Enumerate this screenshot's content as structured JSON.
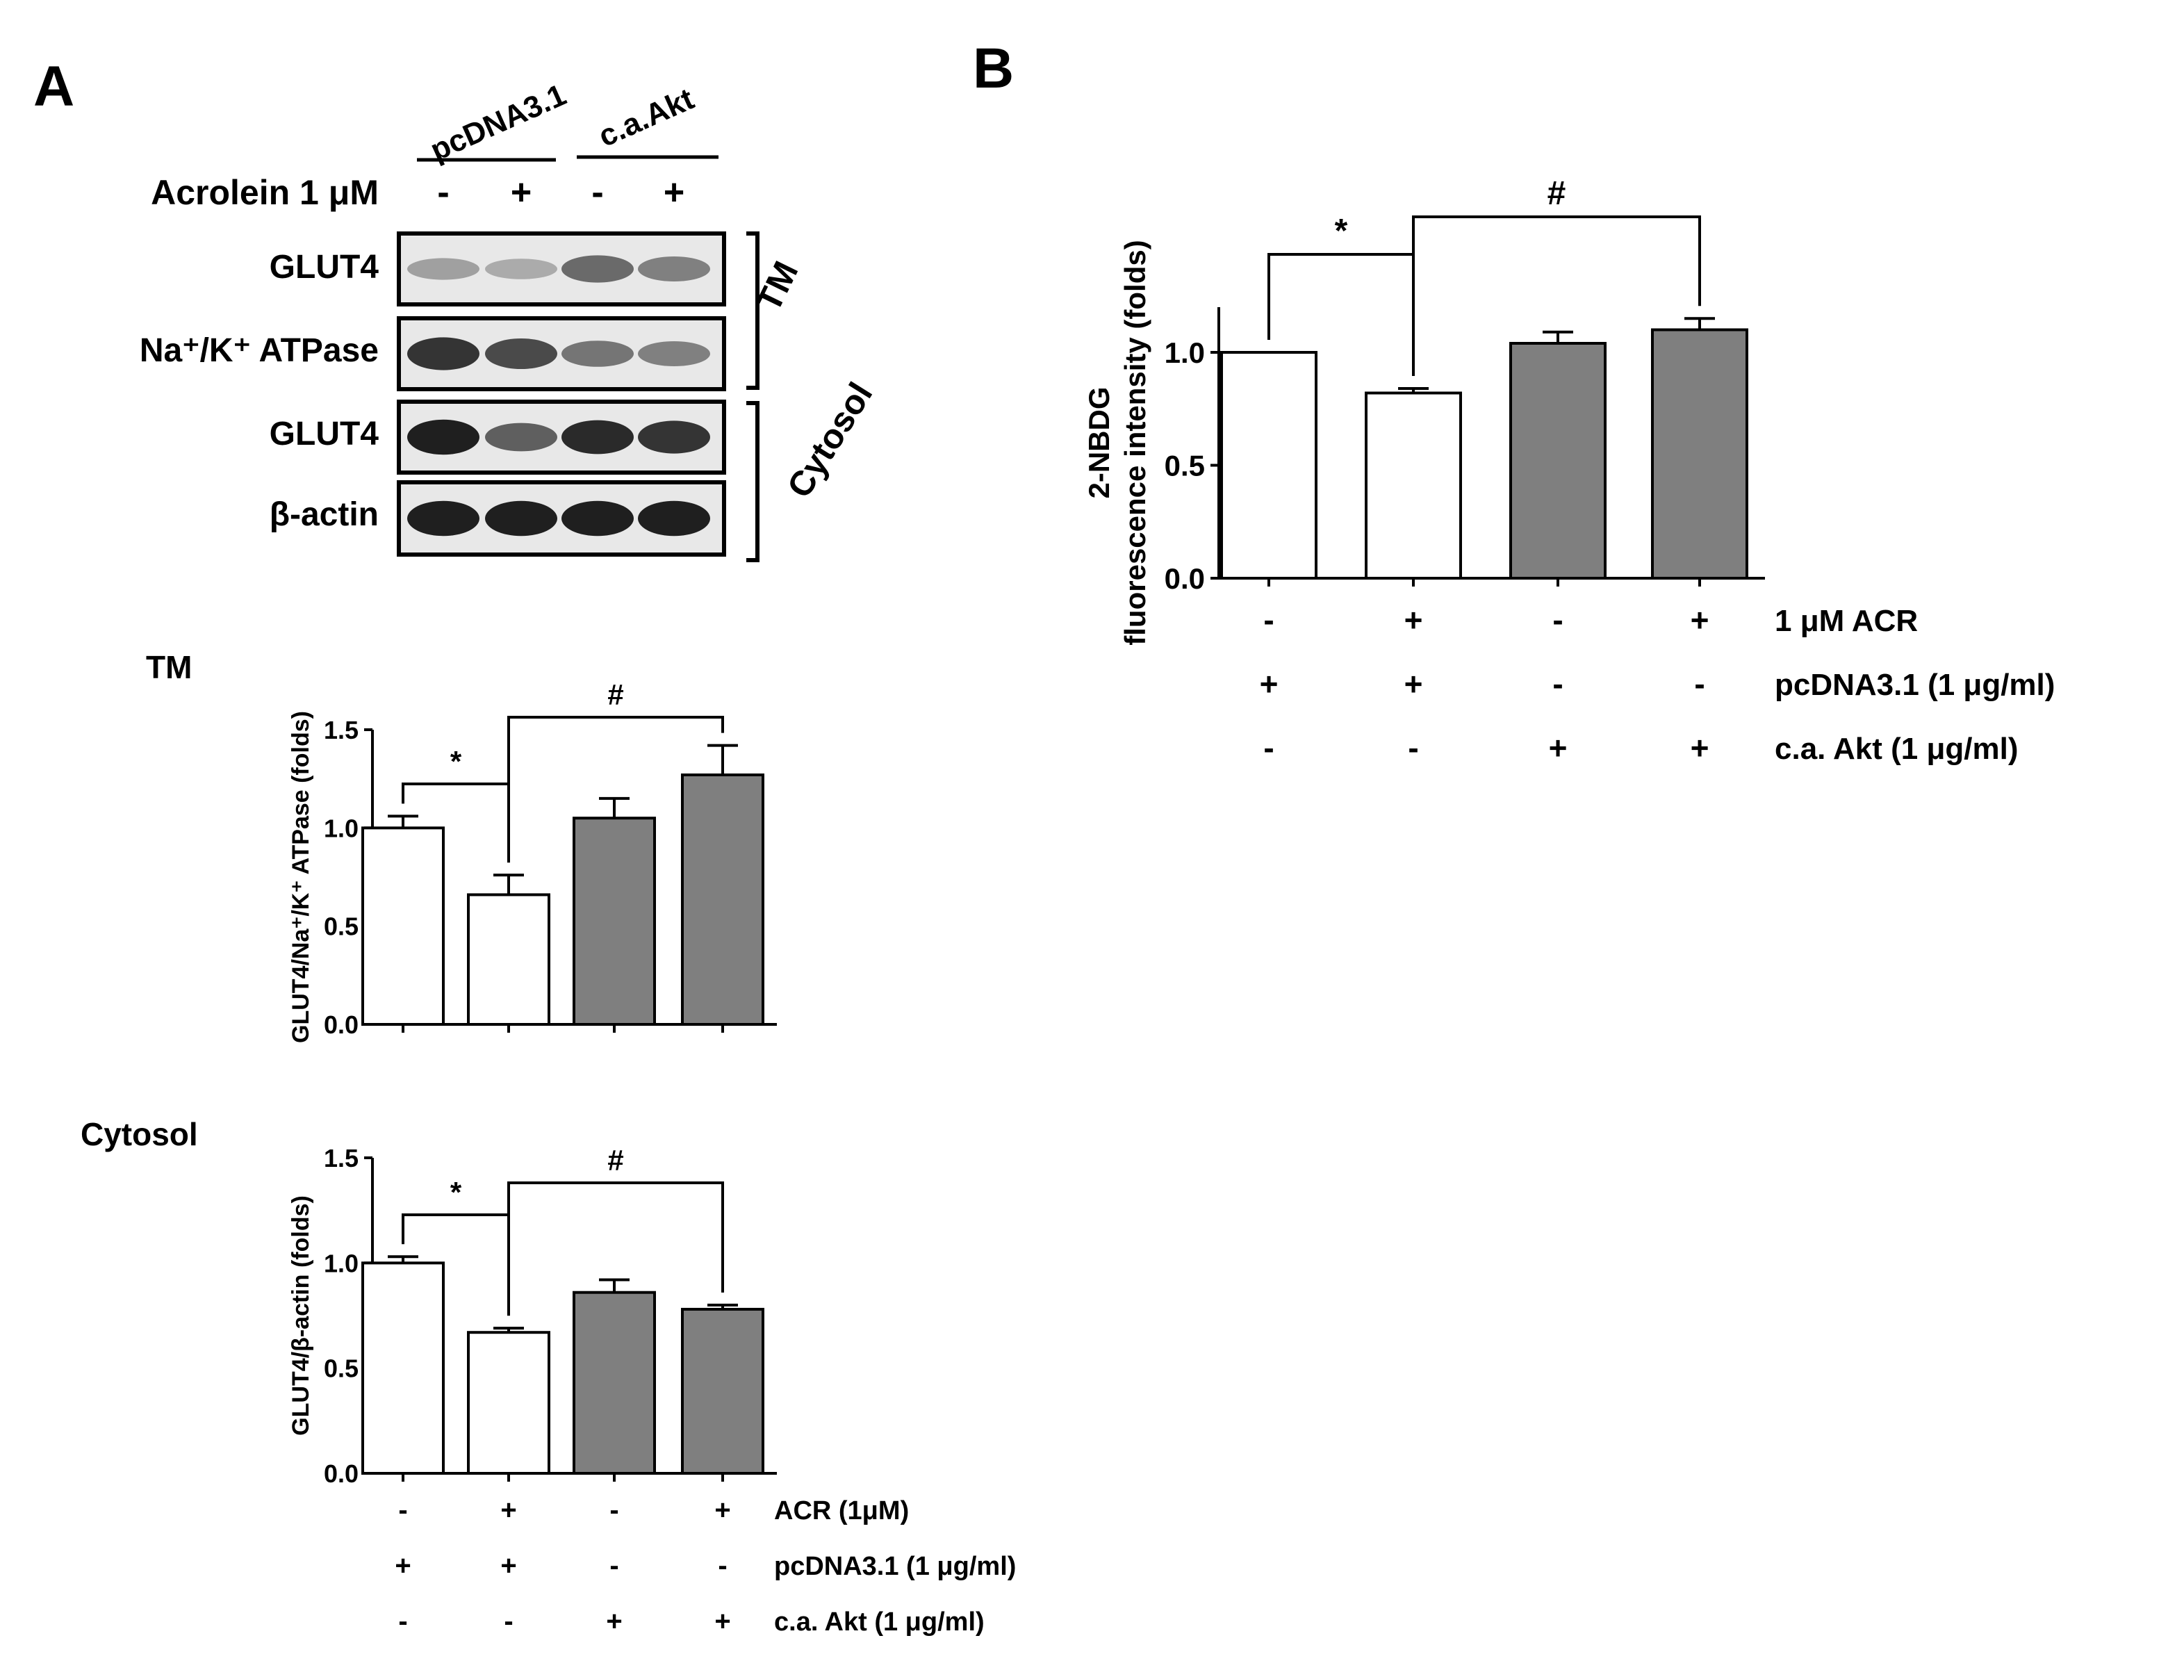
{
  "panel_a_label": "A",
  "panel_b_label": "B",
  "blot": {
    "group_labels": [
      "pcDNA3.1",
      "c.a.Akt"
    ],
    "treatment_label": "Acrolein 1 μM",
    "treatment_signs": [
      "-",
      "+",
      "-",
      "+"
    ],
    "rows": [
      {
        "label_main": "GLUT4",
        "label_sup": ""
      },
      {
        "label_main": "Na⁺/K⁺ ATPase",
        "label_sup": ""
      },
      {
        "label_main": "GLUT4",
        "label_sup": ""
      },
      {
        "label_main": "β-actin",
        "label_sup": ""
      }
    ],
    "fraction_labels": [
      "TM",
      "Cytosol"
    ],
    "band_intensity": {
      "tm_glut4": [
        0.35,
        0.3,
        0.6,
        0.5
      ],
      "tm_atpase": [
        0.85,
        0.75,
        0.55,
        0.5
      ],
      "cyto_glut4": [
        0.95,
        0.65,
        0.9,
        0.85
      ],
      "cyto_actin": [
        0.95,
        0.95,
        0.95,
        0.95
      ]
    }
  },
  "chart_data": [
    {
      "id": "A-TM",
      "type": "bar",
      "section_label": "TM",
      "ylabel": "GLUT4/Na⁺/K⁺ ATPase (folds)",
      "ylim": [
        0,
        1.5
      ],
      "yticks": [
        "0.0",
        "0.5",
        "1.0",
        "1.5"
      ],
      "values": [
        1.0,
        0.66,
        1.05,
        1.27
      ],
      "errors": [
        0.06,
        0.1,
        0.1,
        0.15
      ],
      "fills": [
        "white",
        "white",
        "gray",
        "gray"
      ],
      "sig": [
        {
          "from": 0,
          "to": 1,
          "symbol": "*"
        },
        {
          "from": 1,
          "to": 3,
          "symbol": "#"
        }
      ]
    },
    {
      "id": "A-Cytosol",
      "type": "bar",
      "section_label": "Cytosol",
      "ylabel": "GLUT4/β-actin (folds)",
      "ylim": [
        0,
        1.5
      ],
      "yticks": [
        "0.0",
        "0.5",
        "1.0",
        "1.5"
      ],
      "values": [
        1.0,
        0.67,
        0.86,
        0.78
      ],
      "errors": [
        0.03,
        0.02,
        0.06,
        0.02
      ],
      "fills": [
        "white",
        "white",
        "gray",
        "gray"
      ],
      "sig": [
        {
          "from": 0,
          "to": 1,
          "symbol": "*"
        },
        {
          "from": 1,
          "to": 3,
          "symbol": "#"
        }
      ],
      "conditions": [
        {
          "label": "ACR (1μM)",
          "signs": [
            "-",
            "+",
            "-",
            "+"
          ]
        },
        {
          "label": "pcDNA3.1 (1 μg/ml)",
          "signs": [
            "+",
            "+",
            "-",
            "-"
          ]
        },
        {
          "label": "c.a. Akt (1 μg/ml)",
          "signs": [
            "-",
            "-",
            "+",
            "+"
          ]
        }
      ]
    },
    {
      "id": "B",
      "type": "bar",
      "ylabel_line1": "2-NBDG",
      "ylabel_line2": "fluorescence intensity (folds)",
      "ylim": [
        0,
        1.2
      ],
      "yticks": [
        "0.0",
        "0.5",
        "1.0"
      ],
      "values": [
        1.0,
        0.82,
        1.04,
        1.1
      ],
      "errors": [
        0.0,
        0.02,
        0.05,
        0.05
      ],
      "fills": [
        "white",
        "white",
        "gray",
        "gray"
      ],
      "sig": [
        {
          "from": 0,
          "to": 1,
          "symbol": "*"
        },
        {
          "from": 1,
          "to": 3,
          "symbol": "#"
        }
      ],
      "conditions": [
        {
          "label": "1 μM ACR",
          "signs": [
            "-",
            "+",
            "-",
            "+"
          ]
        },
        {
          "label": "pcDNA3.1 (1 μg/ml)",
          "signs": [
            "+",
            "+",
            "-",
            "-"
          ]
        },
        {
          "label": "c.a. Akt (1 μg/ml)",
          "signs": [
            "-",
            "-",
            "+",
            "+"
          ]
        }
      ]
    }
  ],
  "colors": {
    "bar_gray": "#7f7f7f",
    "bar_white": "#ffffff",
    "ink": "#000000"
  }
}
